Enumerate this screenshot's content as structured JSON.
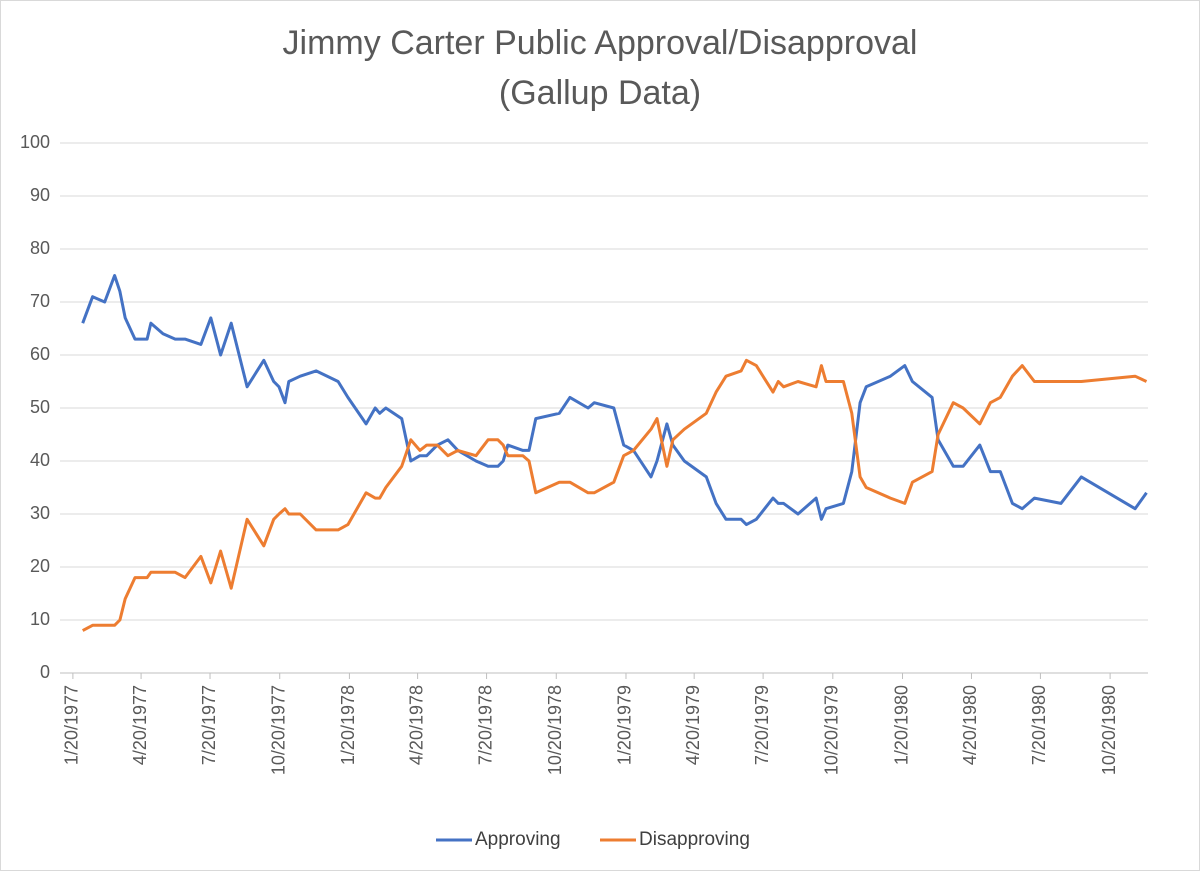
{
  "chart_data": {
    "type": "line",
    "title": [
      "Jimmy Carter Public Approval/Disapproval",
      "(Gallup Data)"
    ],
    "x": [
      "2/2/1977",
      "2/15/1977",
      "3/3/1977",
      "3/16/1977",
      "3/23/1977",
      "3/30/1977",
      "4/12/1977",
      "4/28/1977",
      "5/3/1977",
      "5/19/1977",
      "6/4/1977",
      "6/17/1977",
      "7/8/1977",
      "7/21/1977",
      "8/3/1977",
      "8/17/1977",
      "9/7/1977",
      "9/29/1977",
      "10/12/1977",
      "10/19/1977",
      "10/27/1977",
      "11/1/1977",
      "11/16/1977",
      "12/7/1977",
      "1/5/1978",
      "1/18/1978",
      "2/11/1978",
      "2/23/1978",
      "3/1/1978",
      "3/9/1978",
      "3/30/1978",
      "4/11/1978",
      "4/23/1978",
      "5/2/1978",
      "5/16/1978",
      "5/30/1978",
      "6/12/1978",
      "7/6/1978",
      "7/22/1978",
      "8/4/1978",
      "8/11/1978",
      "8/17/1978",
      "9/6/1978",
      "9/14/1978",
      "9/23/1978",
      "10/24/1978",
      "11/7/1978",
      "12/1/1978",
      "12/9/1978",
      "1/4/1979",
      "1/17/1979",
      "1/30/1979",
      "2/22/1979",
      "3/2/1979",
      "3/15/1979",
      "3/23/1979",
      "4/7/1979",
      "5/6/1979",
      "5/19/1979",
      "6/1/1979",
      "6/21/1979",
      "6/28/1979",
      "7/11/1979",
      "8/2/1979",
      "8/9/1979",
      "8/16/1979",
      "9/4/1979",
      "9/28/1979",
      "10/5/1979",
      "10/11/1979",
      "11/3/1979",
      "11/14/1979",
      "11/25/1979",
      "12/3/1979",
      "1/4/1980",
      "1/23/1980",
      "2/2/1980",
      "2/28/1980",
      "3/7/1980",
      "3/27/1980",
      "4/9/1980",
      "5/1/1980",
      "5/15/1980",
      "5/28/1980",
      "6/13/1980",
      "6/26/1980",
      "7/12/1980",
      "8/16/1980",
      "9/12/1980",
      "11/22/1980",
      "12/7/1980"
    ],
    "series": [
      {
        "name": "Approving",
        "color": "#4472c4",
        "values": [
          66,
          71,
          70,
          75,
          72,
          67,
          63,
          63,
          66,
          64,
          63,
          63,
          62,
          67,
          60,
          66,
          54,
          59,
          55,
          54,
          51,
          55,
          56,
          57,
          55,
          52,
          47,
          50,
          49,
          50,
          48,
          40,
          41,
          41,
          43,
          44,
          42,
          40,
          39,
          39,
          40,
          43,
          42,
          42,
          48,
          49,
          52,
          50,
          51,
          50,
          43,
          42,
          37,
          40,
          47,
          43,
          40,
          37,
          32,
          29,
          29,
          28,
          29,
          33,
          32,
          32,
          30,
          33,
          29,
          31,
          32,
          38,
          51,
          54,
          56,
          58,
          55,
          52,
          44,
          39,
          39,
          43,
          38,
          38,
          32,
          31,
          33,
          32,
          37,
          31,
          34
        ]
      },
      {
        "name": "Disapproving",
        "color": "#ed7d31",
        "values": [
          8,
          9,
          9,
          9,
          10,
          14,
          18,
          18,
          19,
          19,
          19,
          18,
          22,
          17,
          23,
          16,
          29,
          24,
          29,
          30,
          31,
          30,
          30,
          27,
          27,
          28,
          34,
          33,
          33,
          35,
          39,
          44,
          42,
          43,
          43,
          41,
          42,
          41,
          44,
          44,
          43,
          41,
          41,
          40,
          34,
          36,
          36,
          34,
          34,
          36,
          41,
          42,
          46,
          48,
          39,
          44,
          46,
          49,
          53,
          56,
          57,
          59,
          58,
          53,
          55,
          54,
          55,
          54,
          58,
          55,
          55,
          49,
          37,
          35,
          33,
          32,
          36,
          38,
          45,
          51,
          50,
          47,
          51,
          52,
          56,
          58,
          55,
          55,
          55,
          56,
          55
        ]
      }
    ],
    "xlim": [
      "1/3/1977",
      "12/9/1980"
    ],
    "xticks": [
      "1/20/1977",
      "4/20/1977",
      "7/20/1977",
      "10/20/1977",
      "1/20/1978",
      "4/20/1978",
      "7/20/1978",
      "10/20/1978",
      "1/20/1979",
      "4/20/1979",
      "7/20/1979",
      "10/20/1979",
      "1/20/1980",
      "4/20/1980",
      "7/20/1980",
      "10/20/1980"
    ],
    "ylim": [
      0,
      100
    ],
    "yticks": [
      0,
      10,
      20,
      30,
      40,
      50,
      60,
      70,
      80,
      90,
      100
    ],
    "grid": true,
    "legend": "bottom"
  }
}
